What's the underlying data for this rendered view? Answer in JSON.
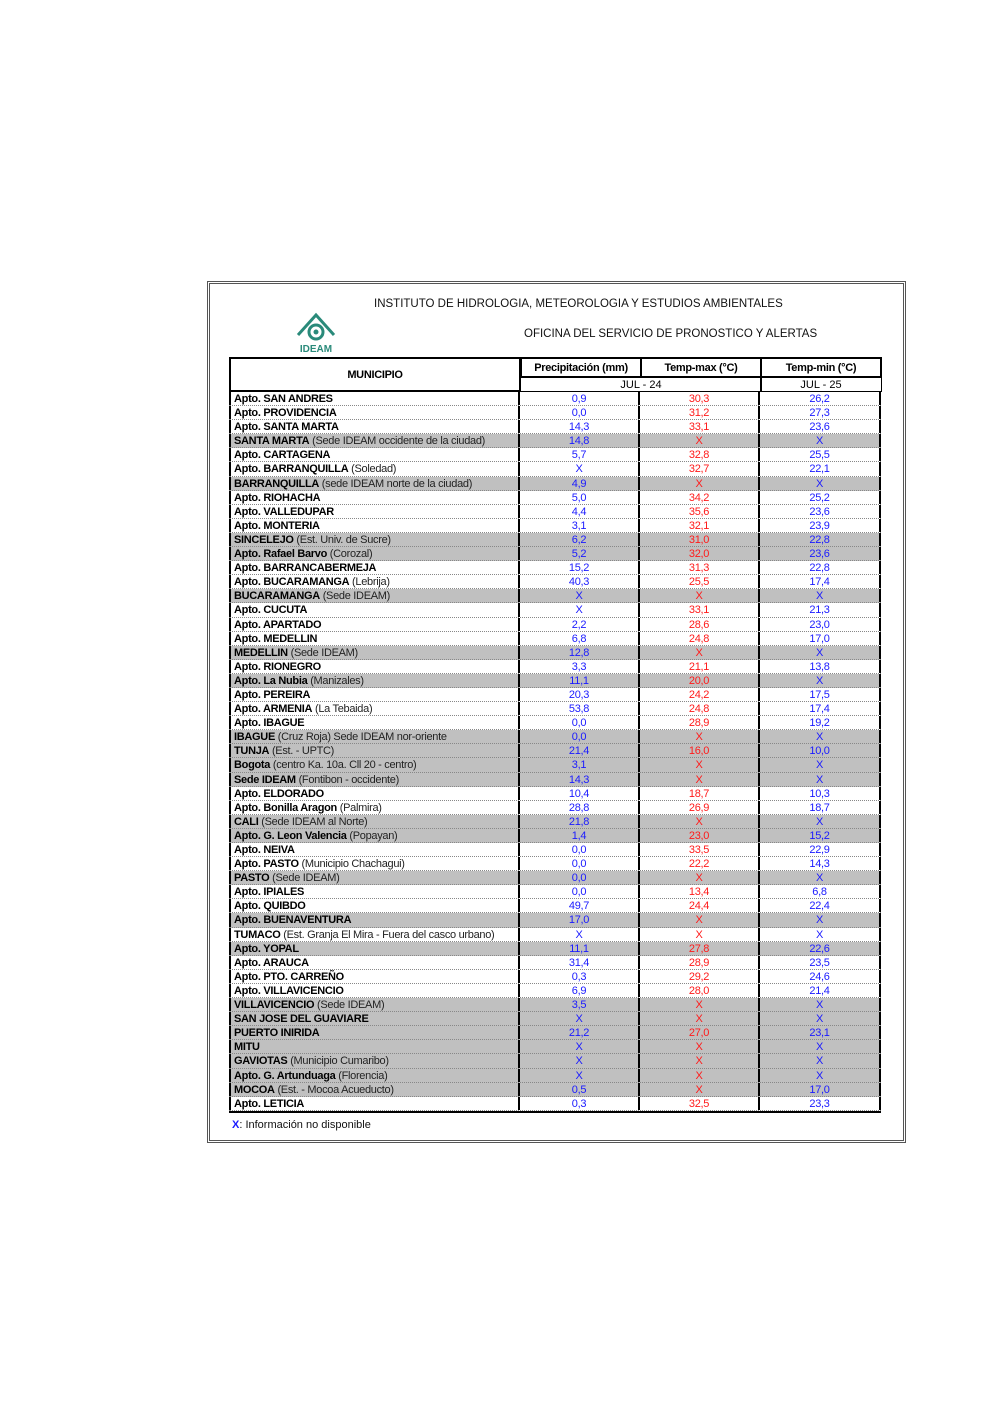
{
  "header": {
    "institute": "INSTITUTO DE HIDROLOGIA, METEOROLOGIA Y ESTUDIOS AMBIENTALES",
    "office": "OFICINA DEL SERVICIO DE PRONOSTICO Y ALERTAS",
    "logo_text": "IDEAM"
  },
  "columns": {
    "municipio": "MUNICIPIO",
    "precip": "Precipitación (mm)",
    "tmax": "Temp-max (°C)",
    "tmin": "Temp-min (°C)",
    "date1": "JUL - 24",
    "date2": "JUL - 25"
  },
  "colors": {
    "precip": "#1a1aff",
    "tmax": "#ff1a1a",
    "tmin": "#1a1aff",
    "shaded_row": "#c0c0c0"
  },
  "rows": [
    [
      "Apto. SAN ANDRES",
      "",
      "0,9",
      "30,3",
      "26,2",
      0
    ],
    [
      "Apto. PROVIDENCIA",
      "",
      "0,0",
      "31,2",
      "27,3",
      0
    ],
    [
      "Apto. SANTA MARTA",
      "",
      "14,3",
      "33,1",
      "23,6",
      0
    ],
    [
      "SANTA MARTA",
      "(Sede IDEAM occidente de la ciudad)",
      "14,8",
      "X",
      "X",
      1
    ],
    [
      "Apto. CARTAGENA",
      "",
      "5,7",
      "32,8",
      "25,5",
      0
    ],
    [
      "Apto. BARRANQUILLA",
      "(Soledad)",
      "X",
      "32,7",
      "22,1",
      0
    ],
    [
      "BARRANQUILLA",
      "(sede IDEAM norte de la ciudad)",
      "4,9",
      "X",
      "X",
      1
    ],
    [
      "Apto. RIOHACHA",
      "",
      "5,0",
      "34,2",
      "25,2",
      0
    ],
    [
      "Apto. VALLEDUPAR",
      "",
      "4,4",
      "35,6",
      "23,6",
      0
    ],
    [
      "Apto. MONTERIA",
      "",
      "3,1",
      "32,1",
      "23,9",
      0
    ],
    [
      "SINCELEJO",
      "(Est. Univ. de Sucre)",
      "6,2",
      "31,0",
      "22,8",
      1
    ],
    [
      "Apto. Rafael Barvo",
      "(Corozal)",
      "5,2",
      "32,0",
      "23,6",
      1
    ],
    [
      "Apto. BARRANCABERMEJA",
      "",
      "15,2",
      "31,3",
      "22,8",
      0
    ],
    [
      "Apto. BUCARAMANGA",
      "(Lebrija)",
      "40,3",
      "25,5",
      "17,4",
      0
    ],
    [
      "BUCARAMANGA",
      "(Sede IDEAM)",
      "X",
      "X",
      "X",
      1
    ],
    [
      "Apto. CUCUTA",
      "",
      "X",
      "33,1",
      "21,3",
      0
    ],
    [
      "Apto. APARTADO",
      "",
      "2,2",
      "28,6",
      "23,0",
      0
    ],
    [
      "Apto. MEDELLIN",
      "",
      "6,8",
      "24,8",
      "17,0",
      0
    ],
    [
      "MEDELLIN",
      "(Sede IDEAM)",
      "12,8",
      "X",
      "X",
      1
    ],
    [
      "Apto. RIONEGRO",
      "",
      "3,3",
      "21,1",
      "13,8",
      0
    ],
    [
      "Apto. La Nubia",
      "(Manizales)",
      "11,1",
      "20,0",
      "X",
      1
    ],
    [
      "Apto. PEREIRA",
      "",
      "20,3",
      "24,2",
      "17,5",
      0
    ],
    [
      "Apto. ARMENIA",
      "(La Tebaida)",
      "53,8",
      "24,8",
      "17,4",
      0
    ],
    [
      "Apto. IBAGUE",
      "",
      "0,0",
      "28,9",
      "19,2",
      0
    ],
    [
      "IBAGUE",
      "(Cruz Roja) Sede IDEAM  nor-oriente",
      "0,0",
      "X",
      "X",
      1
    ],
    [
      "TUNJA",
      "(Est. - UPTC)",
      "21,4",
      "16,0",
      "10,0",
      1
    ],
    [
      "Bogota",
      "(centro Ka. 10a. Cll 20 - centro)",
      "3,1",
      "X",
      "X",
      1
    ],
    [
      "Sede IDEAM",
      "(Fontibon - occidente)",
      "14,3",
      "X",
      "X",
      1
    ],
    [
      "Apto. ELDORADO",
      "",
      "10,4",
      "18,7",
      "10,3",
      0
    ],
    [
      "Apto. Bonilla Aragon",
      "(Palmira)",
      "28,8",
      "26,9",
      "18,7",
      0
    ],
    [
      "CALI",
      "(Sede IDEAM al Norte)",
      "21,8",
      "X",
      "X",
      1
    ],
    [
      "Apto. G. Leon Valencia",
      "(Popayan)",
      "1,4",
      "23,0",
      "15,2",
      1
    ],
    [
      "Apto. NEIVA",
      "",
      "0,0",
      "33,5",
      "22,9",
      0
    ],
    [
      "Apto. PASTO",
      "(Municipio Chachagui)",
      "0,0",
      "22,2",
      "14,3",
      0
    ],
    [
      "PASTO",
      "(Sede IDEAM)",
      "0,0",
      "X",
      "X",
      1
    ],
    [
      "Apto. IPIALES",
      "",
      "0,0",
      "13,4",
      "6,8",
      0
    ],
    [
      "Apto. QUIBDO",
      "",
      "49,7",
      "24,4",
      "22,4",
      0
    ],
    [
      "Apto. BUENAVENTURA",
      "",
      "17,0",
      "X",
      "X",
      1
    ],
    [
      "TUMACO",
      "(Est. Granja El Mira - Fuera del casco urbano)",
      "X",
      "X",
      "X",
      0
    ],
    [
      "Apto. YOPAL",
      "",
      "11,1",
      "27,8",
      "22,6",
      1
    ],
    [
      "Apto. ARAUCA",
      "",
      "31,4",
      "28,9",
      "23,5",
      0
    ],
    [
      "Apto. PTO.  CARREÑO",
      "",
      "0,3",
      "29,2",
      "24,6",
      0
    ],
    [
      "Apto. VILLAVICENCIO",
      "",
      "6,9",
      "28,0",
      "21,4",
      0
    ],
    [
      "VILLAVICENCIO",
      "(Sede IDEAM)",
      "3,5",
      "X",
      "X",
      1
    ],
    [
      "SAN JOSE DEL GUAVIARE",
      "",
      "X",
      "X",
      "X",
      1
    ],
    [
      "PUERTO INIRIDA",
      "",
      "21,2",
      "27,0",
      "23,1",
      1
    ],
    [
      "MITU",
      "",
      "X",
      "X",
      "X",
      1
    ],
    [
      "GAVIOTAS",
      "(Municipio Cumaribo)",
      "X",
      "X",
      "X",
      1
    ],
    [
      "Apto. G. Artunduaga",
      "(Florencia)",
      "X",
      "X",
      "X",
      1
    ],
    [
      "MOCOA",
      "(Est. - Mocoa Acueducto)",
      "0,5",
      "X",
      "17,0",
      1
    ],
    [
      "Apto. LETICIA",
      "",
      "0,3",
      "32,5",
      "23,3",
      0
    ]
  ],
  "footer": {
    "symbol": "X",
    "text": ": Información no disponible"
  }
}
